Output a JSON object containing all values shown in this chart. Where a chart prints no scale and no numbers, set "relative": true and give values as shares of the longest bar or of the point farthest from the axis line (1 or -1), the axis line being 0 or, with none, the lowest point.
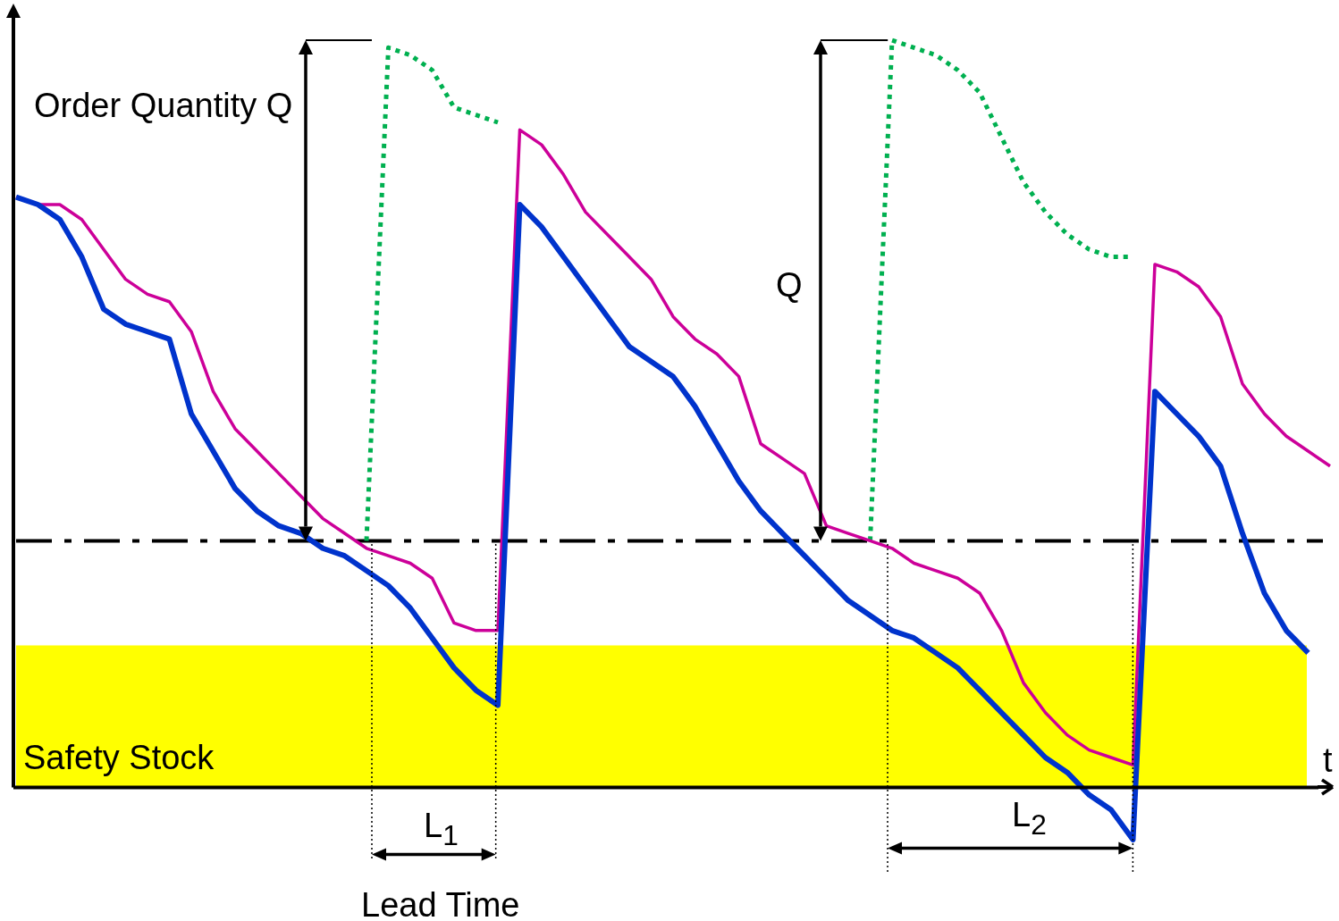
{
  "chart_data": {
    "type": "line",
    "relative": true,
    "xlabel": "t",
    "categories": [
      null,
      null,
      null,
      null,
      null,
      null,
      null,
      null,
      null,
      null,
      null,
      null,
      null,
      null,
      null,
      null,
      null,
      null,
      null,
      null,
      null,
      null,
      null,
      null,
      null,
      null,
      null,
      null,
      null,
      null,
      null,
      null,
      null,
      null,
      null,
      null,
      null,
      null,
      null,
      null,
      null,
      null,
      null,
      null,
      null,
      null,
      null,
      null,
      null,
      null,
      null,
      null,
      null,
      null,
      null,
      null,
      null,
      null,
      null,
      null,
      null
    ],
    "series": [
      {
        "color": "#0033cc",
        "line_style": "solid",
        "values": [
          0.79,
          0.78,
          0.76,
          0.71,
          0.64,
          0.62,
          0.61,
          0.6,
          0.5,
          0.45,
          0.4,
          0.37,
          0.35,
          0.34,
          0.32,
          0.31,
          0.29,
          0.27,
          0.24,
          0.2,
          0.16,
          0.13,
          0.11,
          0.78,
          0.75,
          0.71,
          0.67,
          0.63,
          0.59,
          0.57,
          0.55,
          0.51,
          0.46,
          0.41,
          0.37,
          0.34,
          0.31,
          0.28,
          0.25,
          0.23,
          0.21,
          0.2,
          0.18,
          0.16,
          0.13,
          0.1,
          0.07,
          0.04,
          0.02,
          -0.01,
          -0.03,
          -0.07,
          0.53,
          0.5,
          0.47,
          0.43,
          0.34,
          0.26,
          0.21,
          0.18,
          null
        ]
      },
      {
        "color": "#cc0099",
        "line_style": "solid",
        "values": [
          0.79,
          0.78,
          0.78,
          0.76,
          0.72,
          0.68,
          0.66,
          0.65,
          0.61,
          0.53,
          0.48,
          0.45,
          0.42,
          0.39,
          0.36,
          0.34,
          0.32,
          0.31,
          0.3,
          0.28,
          0.22,
          0.21,
          0.21,
          0.88,
          0.86,
          0.82,
          0.77,
          0.74,
          0.71,
          0.68,
          0.63,
          0.6,
          0.58,
          0.55,
          0.46,
          0.44,
          0.42,
          0.35,
          0.34,
          0.33,
          0.32,
          0.3,
          0.29,
          0.28,
          0.26,
          0.21,
          0.14,
          0.1,
          0.07,
          0.05,
          0.04,
          0.03,
          0.7,
          0.69,
          0.67,
          0.63,
          0.54,
          0.5,
          0.47,
          0.45,
          0.43
        ]
      },
      {
        "color": "#00b050",
        "line_style": "dotted",
        "values": [
          null,
          null,
          null,
          null,
          null,
          null,
          null,
          null,
          null,
          null,
          null,
          null,
          null,
          null,
          null,
          null,
          0.33,
          0.99,
          0.98,
          0.96,
          0.91,
          0.9,
          0.89,
          null,
          null,
          null,
          null,
          null,
          null,
          null,
          null,
          null,
          null,
          null,
          null,
          null,
          null,
          null,
          null,
          0.33,
          1,
          0.99,
          0.98,
          0.96,
          0.93,
          0.87,
          0.81,
          0.77,
          0.74,
          0.72,
          0.71,
          0.71,
          null,
          null,
          null,
          null,
          null,
          null,
          null,
          null,
          null
        ]
      }
    ],
    "ref_lines": [
      {
        "axis": "y",
        "value": 0.33,
        "color": "#000000",
        "line_style": "dashed"
      }
    ],
    "bands": [
      {
        "axis": "y",
        "from": 0,
        "to": 0.19,
        "label": "Safety Stock",
        "color": "#ffff00"
      }
    ],
    "annotations": [
      "Order Quantity Q",
      "Q",
      "L$_{1}$",
      "L$_{2}$",
      "Lead Time"
    ]
  }
}
